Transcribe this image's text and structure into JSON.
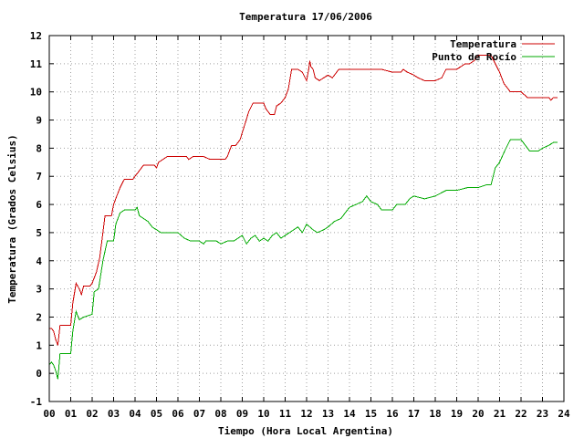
{
  "chart_data": {
    "type": "line",
    "title": "Temperatura 17/06/2006",
    "xlabel": "Tiempo (Hora Local Argentina)",
    "ylabel": "Temperatura (Grados Celsius)",
    "xlim": [
      0,
      24
    ],
    "ylim": [
      -1,
      12
    ],
    "x_ticks": [
      0,
      1,
      2,
      3,
      4,
      5,
      6,
      7,
      8,
      9,
      10,
      11,
      12,
      13,
      14,
      15,
      16,
      17,
      18,
      19,
      20,
      21,
      22,
      23,
      24
    ],
    "x_tick_labels": [
      "00",
      "01",
      "02",
      "03",
      "04",
      "05",
      "06",
      "07",
      "08",
      "09",
      "10",
      "11",
      "12",
      "13",
      "14",
      "15",
      "16",
      "17",
      "18",
      "19",
      "20",
      "21",
      "22",
      "23",
      "24"
    ],
    "y_ticks": [
      -1,
      0,
      1,
      2,
      3,
      4,
      5,
      6,
      7,
      8,
      9,
      10,
      11,
      12
    ],
    "y_tick_labels": [
      "-1",
      "0",
      "1",
      "2",
      "3",
      "4",
      "5",
      "6",
      "7",
      "8",
      "9",
      "10",
      "11",
      "12"
    ],
    "grid": true,
    "legend_position": "top-right",
    "series": [
      {
        "name": "Temperatura",
        "color": "#cc0000",
        "points": [
          [
            0,
            1.6
          ],
          [
            0.1,
            1.6
          ],
          [
            0.2,
            1.5
          ],
          [
            0.3,
            1.2
          ],
          [
            0.4,
            1.0
          ],
          [
            0.5,
            1.7
          ],
          [
            0.7,
            1.7
          ],
          [
            1.0,
            1.7
          ],
          [
            1.1,
            2.5
          ],
          [
            1.25,
            3.2
          ],
          [
            1.4,
            3.0
          ],
          [
            1.5,
            2.8
          ],
          [
            1.6,
            3.1
          ],
          [
            1.9,
            3.1
          ],
          [
            2.0,
            3.2
          ],
          [
            2.2,
            3.6
          ],
          [
            2.35,
            4.1
          ],
          [
            2.5,
            5.0
          ],
          [
            2.6,
            5.6
          ],
          [
            2.9,
            5.6
          ],
          [
            3.0,
            6.0
          ],
          [
            3.15,
            6.3
          ],
          [
            3.3,
            6.6
          ],
          [
            3.5,
            6.9
          ],
          [
            3.7,
            6.9
          ],
          [
            3.9,
            6.9
          ],
          [
            4.0,
            7.0
          ],
          [
            4.2,
            7.2
          ],
          [
            4.4,
            7.4
          ],
          [
            4.9,
            7.4
          ],
          [
            5.0,
            7.3
          ],
          [
            5.1,
            7.5
          ],
          [
            5.3,
            7.6
          ],
          [
            5.5,
            7.7
          ],
          [
            6.0,
            7.7
          ],
          [
            6.4,
            7.7
          ],
          [
            6.5,
            7.6
          ],
          [
            6.7,
            7.7
          ],
          [
            7.2,
            7.7
          ],
          [
            7.5,
            7.6
          ],
          [
            7.9,
            7.6
          ],
          [
            8.2,
            7.6
          ],
          [
            8.3,
            7.7
          ],
          [
            8.5,
            8.1
          ],
          [
            8.7,
            8.1
          ],
          [
            8.9,
            8.3
          ],
          [
            9.1,
            8.8
          ],
          [
            9.3,
            9.3
          ],
          [
            9.5,
            9.6
          ],
          [
            9.8,
            9.6
          ],
          [
            10.0,
            9.6
          ],
          [
            10.1,
            9.4
          ],
          [
            10.3,
            9.2
          ],
          [
            10.5,
            9.2
          ],
          [
            10.6,
            9.5
          ],
          [
            10.8,
            9.6
          ],
          [
            11.0,
            9.8
          ],
          [
            11.15,
            10.1
          ],
          [
            11.3,
            10.8
          ],
          [
            11.6,
            10.8
          ],
          [
            11.8,
            10.7
          ],
          [
            12.0,
            10.4
          ],
          [
            12.1,
            10.8
          ],
          [
            12.15,
            11.1
          ],
          [
            12.2,
            10.9
          ],
          [
            12.3,
            10.8
          ],
          [
            12.4,
            10.5
          ],
          [
            12.6,
            10.4
          ],
          [
            12.8,
            10.5
          ],
          [
            13.0,
            10.6
          ],
          [
            13.2,
            10.5
          ],
          [
            13.3,
            10.6
          ],
          [
            13.5,
            10.8
          ],
          [
            14.0,
            10.8
          ],
          [
            14.5,
            10.8
          ],
          [
            15.0,
            10.8
          ],
          [
            15.5,
            10.8
          ],
          [
            16.0,
            10.7
          ],
          [
            16.4,
            10.7
          ],
          [
            16.5,
            10.8
          ],
          [
            16.7,
            10.7
          ],
          [
            17.0,
            10.6
          ],
          [
            17.2,
            10.5
          ],
          [
            17.5,
            10.4
          ],
          [
            18.0,
            10.4
          ],
          [
            18.3,
            10.5
          ],
          [
            18.5,
            10.8
          ],
          [
            19.0,
            10.8
          ],
          [
            19.2,
            10.9
          ],
          [
            19.4,
            11.0
          ],
          [
            19.6,
            11.0
          ],
          [
            19.8,
            11.1
          ],
          [
            20.0,
            11.3
          ],
          [
            20.3,
            11.3
          ],
          [
            20.6,
            11.3
          ],
          [
            20.8,
            11.0
          ],
          [
            21.0,
            10.7
          ],
          [
            21.2,
            10.3
          ],
          [
            21.5,
            10.0
          ],
          [
            22.0,
            10.0
          ],
          [
            22.3,
            9.8
          ],
          [
            23.0,
            9.8
          ],
          [
            23.3,
            9.8
          ],
          [
            23.4,
            9.7
          ],
          [
            23.5,
            9.8
          ],
          [
            23.7,
            9.8
          ]
        ]
      },
      {
        "name": "Punto de Rocío",
        "color": "#00aa00",
        "points": [
          [
            0,
            0.3
          ],
          [
            0.1,
            0.4
          ],
          [
            0.2,
            0.3
          ],
          [
            0.3,
            0.1
          ],
          [
            0.4,
            -0.2
          ],
          [
            0.5,
            0.7
          ],
          [
            0.8,
            0.7
          ],
          [
            1.0,
            0.7
          ],
          [
            1.1,
            1.5
          ],
          [
            1.25,
            2.2
          ],
          [
            1.4,
            1.9
          ],
          [
            1.6,
            2.0
          ],
          [
            2.0,
            2.1
          ],
          [
            2.1,
            2.9
          ],
          [
            2.3,
            3.0
          ],
          [
            2.5,
            4.0
          ],
          [
            2.7,
            4.7
          ],
          [
            3.0,
            4.7
          ],
          [
            3.1,
            5.3
          ],
          [
            3.3,
            5.7
          ],
          [
            3.5,
            5.8
          ],
          [
            4.0,
            5.8
          ],
          [
            4.1,
            5.9
          ],
          [
            4.2,
            5.6
          ],
          [
            4.4,
            5.5
          ],
          [
            4.6,
            5.4
          ],
          [
            4.8,
            5.2
          ],
          [
            5.0,
            5.1
          ],
          [
            5.2,
            5.0
          ],
          [
            6.0,
            5.0
          ],
          [
            6.3,
            4.8
          ],
          [
            6.6,
            4.7
          ],
          [
            7.0,
            4.7
          ],
          [
            7.2,
            4.6
          ],
          [
            7.3,
            4.7
          ],
          [
            7.8,
            4.7
          ],
          [
            8.0,
            4.6
          ],
          [
            8.3,
            4.7
          ],
          [
            8.6,
            4.7
          ],
          [
            8.8,
            4.8
          ],
          [
            9.0,
            4.9
          ],
          [
            9.2,
            4.6
          ],
          [
            9.4,
            4.8
          ],
          [
            9.6,
            4.9
          ],
          [
            9.8,
            4.7
          ],
          [
            10.0,
            4.8
          ],
          [
            10.2,
            4.7
          ],
          [
            10.4,
            4.9
          ],
          [
            10.6,
            5.0
          ],
          [
            10.8,
            4.8
          ],
          [
            11.0,
            4.9
          ],
          [
            11.2,
            5.0
          ],
          [
            11.4,
            5.1
          ],
          [
            11.6,
            5.2
          ],
          [
            11.8,
            5.0
          ],
          [
            12.0,
            5.3
          ],
          [
            12.3,
            5.1
          ],
          [
            12.5,
            5.0
          ],
          [
            12.8,
            5.1
          ],
          [
            13.0,
            5.2
          ],
          [
            13.3,
            5.4
          ],
          [
            13.6,
            5.5
          ],
          [
            13.8,
            5.7
          ],
          [
            14.0,
            5.9
          ],
          [
            14.3,
            6.0
          ],
          [
            14.6,
            6.1
          ],
          [
            14.8,
            6.3
          ],
          [
            15.0,
            6.1
          ],
          [
            15.3,
            6.0
          ],
          [
            15.5,
            5.8
          ],
          [
            16.0,
            5.8
          ],
          [
            16.2,
            6.0
          ],
          [
            16.6,
            6.0
          ],
          [
            16.8,
            6.2
          ],
          [
            17.0,
            6.3
          ],
          [
            17.5,
            6.2
          ],
          [
            18.0,
            6.3
          ],
          [
            18.5,
            6.5
          ],
          [
            19.0,
            6.5
          ],
          [
            19.5,
            6.6
          ],
          [
            20.0,
            6.6
          ],
          [
            20.4,
            6.7
          ],
          [
            20.6,
            6.7
          ],
          [
            20.8,
            7.3
          ],
          [
            21.0,
            7.5
          ],
          [
            21.3,
            8.0
          ],
          [
            21.5,
            8.3
          ],
          [
            22.0,
            8.3
          ],
          [
            22.2,
            8.1
          ],
          [
            22.4,
            7.9
          ],
          [
            22.8,
            7.9
          ],
          [
            23.0,
            8.0
          ],
          [
            23.3,
            8.1
          ],
          [
            23.5,
            8.2
          ],
          [
            23.7,
            8.2
          ]
        ]
      }
    ]
  }
}
